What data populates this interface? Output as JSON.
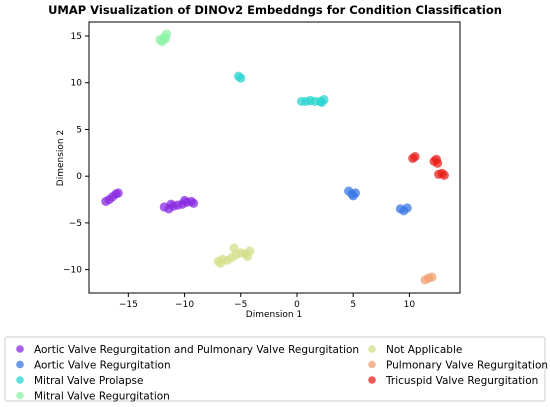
{
  "chart_data": {
    "type": "scatter",
    "title": "UMAP Visualization of DINOv2 Embeddngs for Condition Classification",
    "xlabel": "Dimension 1",
    "ylabel": "Dimension 2",
    "xlim": [
      -18.5,
      14.5
    ],
    "ylim": [
      -12.5,
      16.5
    ],
    "xticks": [
      -15,
      -10,
      -5,
      0,
      5,
      10
    ],
    "yticks": [
      -10,
      -5,
      0,
      5,
      10,
      15
    ],
    "grid": false,
    "legend_position": "below",
    "series": [
      {
        "name": "Aortic Valve Regurgitation and Pulmonary Valve Regurgitation",
        "color": "#8a2be2",
        "points": [
          [
            -17.0,
            -2.7
          ],
          [
            -16.7,
            -2.5
          ],
          [
            -16.4,
            -2.2
          ],
          [
            -16.1,
            -1.9
          ],
          [
            -15.9,
            -1.8
          ],
          [
            -11.8,
            -3.3
          ],
          [
            -11.4,
            -3.5
          ],
          [
            -11.0,
            -3.2
          ],
          [
            -10.6,
            -3.1
          ],
          [
            -10.2,
            -3.0
          ],
          [
            -9.8,
            -2.8
          ],
          [
            -9.4,
            -2.7
          ],
          [
            -9.2,
            -2.9
          ],
          [
            -11.2,
            -3.0
          ],
          [
            -10.0,
            -2.6
          ]
        ]
      },
      {
        "name": "Aortic Valve Regurgitation",
        "color": "#3a78e6",
        "points": [
          [
            4.6,
            -1.6
          ],
          [
            4.9,
            -1.9
          ],
          [
            5.2,
            -1.8
          ],
          [
            5.0,
            -2.1
          ],
          [
            9.2,
            -3.5
          ],
          [
            9.5,
            -3.7
          ],
          [
            9.8,
            -3.4
          ]
        ]
      },
      {
        "name": "Mitral Valve Prolapse",
        "color": "#2ad6cf",
        "points": [
          [
            -5.2,
            10.7
          ],
          [
            -5.0,
            10.5
          ],
          [
            0.4,
            8.0
          ],
          [
            0.8,
            8.0
          ],
          [
            1.2,
            8.1
          ],
          [
            1.6,
            8.0
          ],
          [
            2.1,
            8.0
          ],
          [
            2.4,
            8.2
          ],
          [
            2.2,
            7.9
          ]
        ]
      },
      {
        "name": "Mitral Valve Regurgitation",
        "color": "#8ef2a6",
        "points": [
          [
            -12.2,
            14.6
          ],
          [
            -11.8,
            14.9
          ],
          [
            -11.6,
            15.2
          ],
          [
            -12.0,
            14.4
          ],
          [
            -11.7,
            14.7
          ]
        ]
      },
      {
        "name": "Not Applicable",
        "color": "#d4df8a",
        "points": [
          [
            -7.0,
            -9.1
          ],
          [
            -6.6,
            -8.9
          ],
          [
            -6.2,
            -9.0
          ],
          [
            -5.8,
            -8.7
          ],
          [
            -5.4,
            -8.4
          ],
          [
            -5.0,
            -8.2
          ],
          [
            -4.6,
            -8.3
          ],
          [
            -4.2,
            -8.0
          ],
          [
            -6.8,
            -9.3
          ],
          [
            -5.6,
            -7.7
          ],
          [
            -4.4,
            -8.6
          ]
        ]
      },
      {
        "name": "Pulmonary Valve Regurgitation",
        "color": "#f0a070",
        "points": [
          [
            11.4,
            -11.1
          ],
          [
            11.7,
            -10.9
          ],
          [
            12.0,
            -10.8
          ]
        ]
      },
      {
        "name": "Tricuspid Valve Regurgitation",
        "color": "#e8201c",
        "points": [
          [
            10.3,
            1.9
          ],
          [
            10.5,
            2.1
          ],
          [
            12.2,
            1.6
          ],
          [
            12.4,
            1.8
          ],
          [
            12.5,
            1.4
          ],
          [
            12.6,
            0.2
          ],
          [
            12.9,
            0.3
          ],
          [
            13.1,
            0.1
          ]
        ]
      }
    ]
  }
}
